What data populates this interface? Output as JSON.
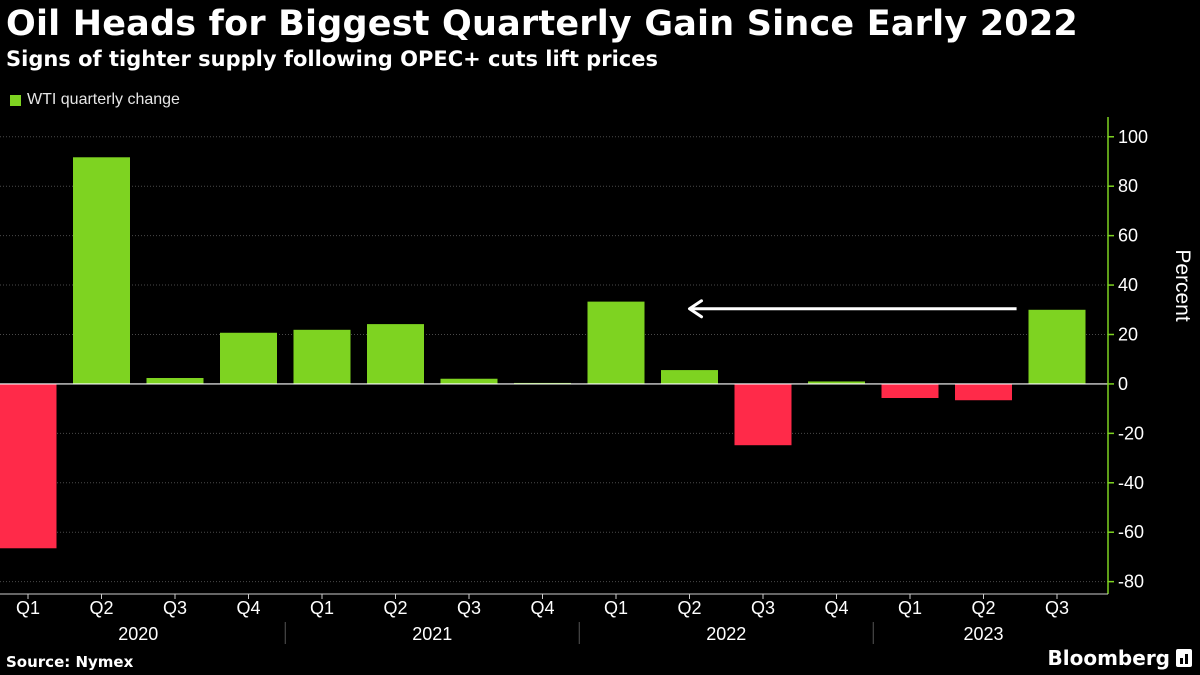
{
  "chart_data": {
    "type": "bar",
    "title": "Oil Heads for Biggest Quarterly Gain Since Early 2022",
    "subtitle": "Signs of tighter supply following OPEC+ cuts lift prices",
    "legend": {
      "label": "WTI quarterly change",
      "position": "top-left"
    },
    "categories": [
      "Q1",
      "Q2",
      "Q3",
      "Q4",
      "Q1",
      "Q2",
      "Q3",
      "Q4",
      "Q1",
      "Q2",
      "Q3",
      "Q4",
      "Q1",
      "Q2",
      "Q3"
    ],
    "year_groups": [
      {
        "label": "2020",
        "start": 0,
        "end": 3
      },
      {
        "label": "2021",
        "start": 4,
        "end": 7
      },
      {
        "label": "2022",
        "start": 8,
        "end": 11
      },
      {
        "label": "2023",
        "start": 12,
        "end": 14
      }
    ],
    "values": [
      -66.5,
      91.7,
      2.4,
      20.7,
      21.9,
      24.2,
      2.1,
      0.4,
      33.3,
      5.6,
      -24.8,
      1.0,
      -5.7,
      -6.6,
      30.0
    ],
    "ylabel": "Percent",
    "ylim": [
      -85,
      108
    ],
    "yticks": [
      100,
      80,
      60,
      40,
      20,
      0,
      -20,
      -40,
      -60,
      -80
    ],
    "y_axis_position": "right",
    "grid": true,
    "colors": {
      "positive": "#7ed321",
      "negative": "#ff2a49",
      "axis": "#7ed321",
      "grid": "#4a4a4a"
    },
    "annotation": {
      "type": "arrow",
      "from_x": 13.45,
      "to_x": 9.0,
      "y": 30
    }
  },
  "footer": {
    "source": "Source: Nymex",
    "brand": "Bloomberg"
  },
  "icons": {
    "brand": "bloomberg-terminal-icon"
  }
}
